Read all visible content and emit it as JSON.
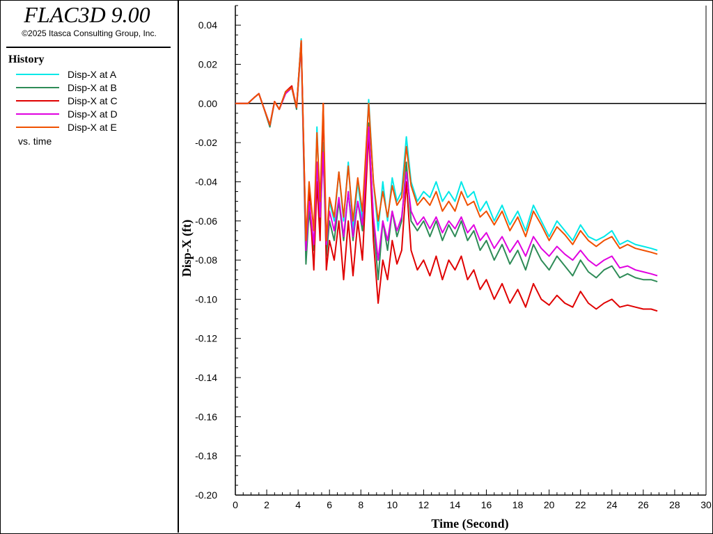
{
  "app": {
    "title": "FLAC3D 9.00",
    "copyright": "©2025 Itasca Consulting Group, Inc."
  },
  "legend": {
    "heading": "History",
    "items": [
      {
        "label": "Disp-X at A",
        "color": "#00e8e8"
      },
      {
        "label": "Disp-X at B",
        "color": "#2e8b57"
      },
      {
        "label": "Disp-X at C",
        "color": "#e00000"
      },
      {
        "label": "Disp-X at D",
        "color": "#e000e0"
      },
      {
        "label": "Disp-X at E",
        "color": "#f05000"
      }
    ],
    "vs_label": "vs. time"
  },
  "chart_data": {
    "type": "line",
    "xlabel": "Time (Second)",
    "ylabel": "Disp-X (ft)",
    "xlim": [
      0,
      30
    ],
    "ylim": [
      -0.2,
      0.05
    ],
    "xticks": [
      0,
      2,
      4,
      6,
      8,
      10,
      12,
      14,
      16,
      18,
      20,
      22,
      24,
      26,
      28,
      30
    ],
    "yticks": [
      0.04,
      0.02,
      0.0,
      -0.02,
      -0.04,
      -0.06,
      -0.08,
      -0.1,
      -0.12,
      -0.14,
      -0.16,
      -0.18,
      -0.2
    ],
    "ytick_labels": [
      "0.04",
      "0.02",
      "0.00",
      "-0.02",
      "-0.04",
      "-0.06",
      "-0.08",
      "-0.10",
      "-0.12",
      "-0.14",
      "-0.16",
      "-0.18",
      "-0.20"
    ],
    "zero_line": true,
    "grid": false,
    "series": [
      {
        "name": "Disp-X at A",
        "color": "#00e8e8",
        "x": [
          0,
          0.8,
          1.2,
          1.5,
          1.8,
          2.2,
          2.5,
          2.8,
          3.2,
          3.6,
          3.9,
          4.2,
          4.5,
          4.7,
          5.0,
          5.2,
          5.4,
          5.6,
          5.8,
          6.0,
          6.3,
          6.6,
          6.9,
          7.2,
          7.5,
          7.8,
          8.1,
          8.5,
          8.8,
          9.1,
          9.4,
          9.7,
          10.0,
          10.3,
          10.6,
          10.9,
          11.2,
          11.6,
          12.0,
          12.4,
          12.8,
          13.2,
          13.6,
          14.0,
          14.4,
          14.8,
          15.2,
          15.6,
          16.0,
          16.5,
          17.0,
          17.5,
          18.0,
          18.5,
          19.0,
          19.5,
          20.0,
          20.5,
          21.0,
          21.5,
          22.0,
          22.5,
          23.0,
          23.5,
          24.0,
          24.5,
          25.0,
          25.5,
          26.0,
          26.5,
          26.9
        ],
        "y": [
          0,
          0,
          0.003,
          0.005,
          -0.002,
          -0.011,
          0.001,
          -0.003,
          0.006,
          0.008,
          -0.002,
          0.033,
          -0.08,
          -0.05,
          -0.075,
          -0.012,
          -0.055,
          -0.02,
          -0.075,
          -0.05,
          -0.06,
          -0.035,
          -0.06,
          -0.03,
          -0.065,
          -0.04,
          -0.06,
          0.002,
          -0.04,
          -0.065,
          -0.04,
          -0.06,
          -0.038,
          -0.05,
          -0.045,
          -0.017,
          -0.04,
          -0.05,
          -0.045,
          -0.048,
          -0.04,
          -0.05,
          -0.045,
          -0.05,
          -0.04,
          -0.048,
          -0.045,
          -0.055,
          -0.05,
          -0.06,
          -0.052,
          -0.062,
          -0.055,
          -0.065,
          -0.052,
          -0.06,
          -0.068,
          -0.06,
          -0.065,
          -0.07,
          -0.062,
          -0.068,
          -0.07,
          -0.068,
          -0.065,
          -0.072,
          -0.07,
          -0.072,
          -0.073,
          -0.074,
          -0.075
        ]
      },
      {
        "name": "Disp-X at B",
        "color": "#2e8b57",
        "x": [
          0,
          0.8,
          1.2,
          1.5,
          1.8,
          2.2,
          2.5,
          2.8,
          3.2,
          3.6,
          3.9,
          4.2,
          4.5,
          4.7,
          5.0,
          5.2,
          5.4,
          5.6,
          5.8,
          6.0,
          6.3,
          6.6,
          6.9,
          7.2,
          7.5,
          7.8,
          8.1,
          8.5,
          8.8,
          9.1,
          9.4,
          9.7,
          10.0,
          10.3,
          10.6,
          10.9,
          11.2,
          11.6,
          12.0,
          12.4,
          12.8,
          13.2,
          13.6,
          14.0,
          14.4,
          14.8,
          15.2,
          15.6,
          16.0,
          16.5,
          17.0,
          17.5,
          18.0,
          18.5,
          19.0,
          19.5,
          20.0,
          20.5,
          21.0,
          21.5,
          22.0,
          22.5,
          23.0,
          23.5,
          24.0,
          24.5,
          25.0,
          25.5,
          26.0,
          26.5,
          26.9
        ],
        "y": [
          0,
          0,
          0.003,
          0.005,
          -0.002,
          -0.012,
          0.001,
          -0.003,
          0.005,
          0.008,
          -0.003,
          0.03,
          -0.082,
          -0.055,
          -0.075,
          -0.03,
          -0.06,
          -0.025,
          -0.078,
          -0.06,
          -0.07,
          -0.05,
          -0.07,
          -0.045,
          -0.07,
          -0.05,
          -0.065,
          -0.01,
          -0.06,
          -0.09,
          -0.06,
          -0.075,
          -0.055,
          -0.068,
          -0.06,
          -0.03,
          -0.06,
          -0.065,
          -0.06,
          -0.068,
          -0.06,
          -0.07,
          -0.062,
          -0.068,
          -0.06,
          -0.07,
          -0.065,
          -0.075,
          -0.07,
          -0.08,
          -0.072,
          -0.082,
          -0.075,
          -0.085,
          -0.072,
          -0.08,
          -0.085,
          -0.078,
          -0.083,
          -0.088,
          -0.08,
          -0.086,
          -0.089,
          -0.085,
          -0.083,
          -0.089,
          -0.087,
          -0.089,
          -0.09,
          -0.09,
          -0.091
        ]
      },
      {
        "name": "Disp-X at C",
        "color": "#e00000",
        "x": [
          0,
          0.8,
          1.2,
          1.5,
          1.8,
          2.2,
          2.5,
          2.8,
          3.2,
          3.6,
          3.9,
          4.2,
          4.5,
          4.7,
          5.0,
          5.2,
          5.4,
          5.6,
          5.8,
          6.0,
          6.3,
          6.6,
          6.9,
          7.2,
          7.5,
          7.8,
          8.1,
          8.5,
          8.8,
          9.1,
          9.4,
          9.7,
          10.0,
          10.3,
          10.6,
          10.9,
          11.2,
          11.6,
          12.0,
          12.4,
          12.8,
          13.2,
          13.6,
          14.0,
          14.4,
          14.8,
          15.2,
          15.6,
          16.0,
          16.5,
          17.0,
          17.5,
          18.0,
          18.5,
          19.0,
          19.5,
          20.0,
          20.5,
          21.0,
          21.5,
          22.0,
          22.5,
          23.0,
          23.5,
          24.0,
          24.5,
          25.0,
          25.5,
          26.0,
          26.5,
          26.9
        ],
        "y": [
          0,
          0,
          0.003,
          0.005,
          -0.002,
          -0.011,
          0.001,
          -0.003,
          0.006,
          0.009,
          -0.002,
          0.032,
          -0.07,
          -0.045,
          -0.085,
          -0.04,
          -0.07,
          0.0,
          -0.085,
          -0.07,
          -0.08,
          -0.06,
          -0.09,
          -0.06,
          -0.088,
          -0.06,
          -0.08,
          -0.015,
          -0.07,
          -0.102,
          -0.08,
          -0.09,
          -0.07,
          -0.082,
          -0.075,
          -0.04,
          -0.075,
          -0.085,
          -0.08,
          -0.088,
          -0.078,
          -0.09,
          -0.08,
          -0.085,
          -0.078,
          -0.09,
          -0.085,
          -0.095,
          -0.09,
          -0.1,
          -0.092,
          -0.102,
          -0.095,
          -0.104,
          -0.092,
          -0.1,
          -0.103,
          -0.098,
          -0.102,
          -0.104,
          -0.096,
          -0.102,
          -0.105,
          -0.102,
          -0.1,
          -0.104,
          -0.103,
          -0.104,
          -0.105,
          -0.105,
          -0.106
        ]
      },
      {
        "name": "Disp-X at D",
        "color": "#e000e0",
        "x": [
          0,
          0.8,
          1.2,
          1.5,
          1.8,
          2.2,
          2.5,
          2.8,
          3.2,
          3.6,
          3.9,
          4.2,
          4.5,
          4.7,
          5.0,
          5.2,
          5.4,
          5.6,
          5.8,
          6.0,
          6.3,
          6.6,
          6.9,
          7.2,
          7.5,
          7.8,
          8.1,
          8.5,
          8.8,
          9.1,
          9.4,
          9.7,
          10.0,
          10.3,
          10.6,
          10.9,
          11.2,
          11.6,
          12.0,
          12.4,
          12.8,
          13.2,
          13.6,
          14.0,
          14.4,
          14.8,
          15.2,
          15.6,
          16.0,
          16.5,
          17.0,
          17.5,
          18.0,
          18.5,
          19.0,
          19.5,
          20.0,
          20.5,
          21.0,
          21.5,
          22.0,
          22.5,
          23.0,
          23.5,
          24.0,
          24.5,
          25.0,
          25.5,
          26.0,
          26.5,
          26.9
        ],
        "y": [
          0,
          0,
          0.003,
          0.005,
          -0.002,
          -0.011,
          0.001,
          -0.003,
          0.005,
          0.008,
          -0.002,
          0.031,
          -0.075,
          -0.05,
          -0.072,
          -0.03,
          -0.058,
          -0.025,
          -0.072,
          -0.055,
          -0.065,
          -0.048,
          -0.068,
          -0.045,
          -0.068,
          -0.05,
          -0.062,
          -0.012,
          -0.058,
          -0.08,
          -0.06,
          -0.07,
          -0.055,
          -0.065,
          -0.058,
          -0.035,
          -0.055,
          -0.062,
          -0.058,
          -0.064,
          -0.058,
          -0.066,
          -0.06,
          -0.064,
          -0.058,
          -0.066,
          -0.062,
          -0.07,
          -0.066,
          -0.074,
          -0.068,
          -0.076,
          -0.07,
          -0.078,
          -0.068,
          -0.074,
          -0.078,
          -0.073,
          -0.077,
          -0.08,
          -0.075,
          -0.08,
          -0.083,
          -0.08,
          -0.078,
          -0.084,
          -0.083,
          -0.085,
          -0.086,
          -0.087,
          -0.088
        ]
      },
      {
        "name": "Disp-X at E",
        "color": "#f05000",
        "x": [
          0,
          0.8,
          1.2,
          1.5,
          1.8,
          2.2,
          2.5,
          2.8,
          3.2,
          3.6,
          3.9,
          4.2,
          4.5,
          4.7,
          5.0,
          5.2,
          5.4,
          5.6,
          5.8,
          6.0,
          6.3,
          6.6,
          6.9,
          7.2,
          7.5,
          7.8,
          8.1,
          8.5,
          8.8,
          9.1,
          9.4,
          9.7,
          10.0,
          10.3,
          10.6,
          10.9,
          11.2,
          11.6,
          12.0,
          12.4,
          12.8,
          13.2,
          13.6,
          14.0,
          14.4,
          14.8,
          15.2,
          15.6,
          16.0,
          16.5,
          17.0,
          17.5,
          18.0,
          18.5,
          19.0,
          19.5,
          20.0,
          20.5,
          21.0,
          21.5,
          22.0,
          22.5,
          23.0,
          23.5,
          24.0,
          24.5,
          25.0,
          25.5,
          26.0,
          26.5,
          26.9
        ],
        "y": [
          0,
          0,
          0.003,
          0.005,
          -0.002,
          -0.011,
          0.001,
          -0.003,
          0.006,
          0.008,
          -0.002,
          0.032,
          -0.07,
          -0.04,
          -0.065,
          -0.015,
          -0.05,
          0.0,
          -0.07,
          -0.048,
          -0.058,
          -0.035,
          -0.058,
          -0.032,
          -0.06,
          -0.038,
          -0.055,
          0.0,
          -0.04,
          -0.06,
          -0.045,
          -0.058,
          -0.042,
          -0.052,
          -0.048,
          -0.022,
          -0.042,
          -0.052,
          -0.048,
          -0.052,
          -0.045,
          -0.055,
          -0.05,
          -0.055,
          -0.045,
          -0.052,
          -0.05,
          -0.058,
          -0.055,
          -0.062,
          -0.055,
          -0.065,
          -0.058,
          -0.068,
          -0.055,
          -0.062,
          -0.07,
          -0.063,
          -0.067,
          -0.072,
          -0.065,
          -0.07,
          -0.073,
          -0.07,
          -0.068,
          -0.074,
          -0.072,
          -0.074,
          -0.075,
          -0.076,
          -0.077
        ]
      }
    ]
  }
}
